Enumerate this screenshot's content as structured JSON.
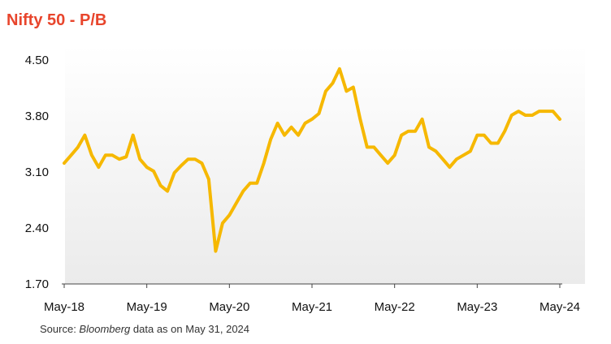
{
  "title": "Nifty 50 - P/B",
  "source": {
    "prefix": "Source: ",
    "emph": "Bloomberg",
    "suffix": " data as on May 31, 2024"
  },
  "colors": {
    "title": "#E8452C",
    "line": "#F6B800",
    "plot_bg_top": "#FFFFFF",
    "plot_bg_bottom": "#EDEDED",
    "axis": "#444444"
  },
  "chart_data": {
    "type": "line",
    "title": "Nifty 50 - P/B",
    "xlabel": "",
    "ylabel": "",
    "ylim": [
      1.7,
      4.5
    ],
    "y_ticks": [
      "1.70",
      "2.40",
      "3.10",
      "3.80",
      "4.50"
    ],
    "x_ticks": [
      "May-18",
      "May-19",
      "May-20",
      "May-21",
      "May-22",
      "May-23",
      "May-24"
    ],
    "grid": false,
    "series": [
      {
        "name": "",
        "x": [
          "May-18",
          "Jun-18",
          "Jul-18",
          "Aug-18",
          "Sep-18",
          "Oct-18",
          "Nov-18",
          "Dec-18",
          "Jan-19",
          "Feb-19",
          "Mar-19",
          "Apr-19",
          "May-19",
          "Jun-19",
          "Jul-19",
          "Aug-19",
          "Sep-19",
          "Oct-19",
          "Nov-19",
          "Dec-19",
          "Jan-20",
          "Feb-20",
          "Mar-20",
          "Apr-20",
          "May-20",
          "Jun-20",
          "Jul-20",
          "Aug-20",
          "Sep-20",
          "Oct-20",
          "Nov-20",
          "Dec-20",
          "Jan-21",
          "Feb-21",
          "Mar-21",
          "Apr-21",
          "May-21",
          "Jun-21",
          "Jul-21",
          "Aug-21",
          "Sep-21",
          "Oct-21",
          "Nov-21",
          "Dec-21",
          "Jan-22",
          "Feb-22",
          "Mar-22",
          "Apr-22",
          "May-22",
          "Jun-22",
          "Jul-22",
          "Aug-22",
          "Sep-22",
          "Oct-22",
          "Nov-22",
          "Dec-22",
          "Jan-23",
          "Feb-23",
          "Mar-23",
          "Apr-23",
          "May-23",
          "Jun-23",
          "Jul-23",
          "Aug-23",
          "Sep-23",
          "Oct-23",
          "Nov-23",
          "Dec-23",
          "Jan-24",
          "Feb-24",
          "Mar-24",
          "Apr-24",
          "May-24"
        ],
        "values": [
          3.2,
          3.3,
          3.4,
          3.55,
          3.3,
          3.15,
          3.3,
          3.3,
          3.25,
          3.28,
          3.55,
          3.25,
          3.15,
          3.1,
          2.92,
          2.85,
          3.08,
          3.17,
          3.25,
          3.25,
          3.2,
          3.0,
          2.1,
          2.45,
          2.55,
          2.7,
          2.85,
          2.95,
          2.95,
          3.2,
          3.5,
          3.7,
          3.55,
          3.65,
          3.55,
          3.7,
          3.75,
          3.82,
          4.1,
          4.2,
          4.38,
          4.1,
          4.15,
          3.75,
          3.4,
          3.4,
          3.3,
          3.2,
          3.3,
          3.55,
          3.6,
          3.6,
          3.75,
          3.4,
          3.35,
          3.25,
          3.15,
          3.25,
          3.3,
          3.35,
          3.55,
          3.55,
          3.45,
          3.45,
          3.6,
          3.8,
          3.85,
          3.8,
          3.8,
          3.85,
          3.85,
          3.85,
          3.75
        ]
      }
    ]
  }
}
